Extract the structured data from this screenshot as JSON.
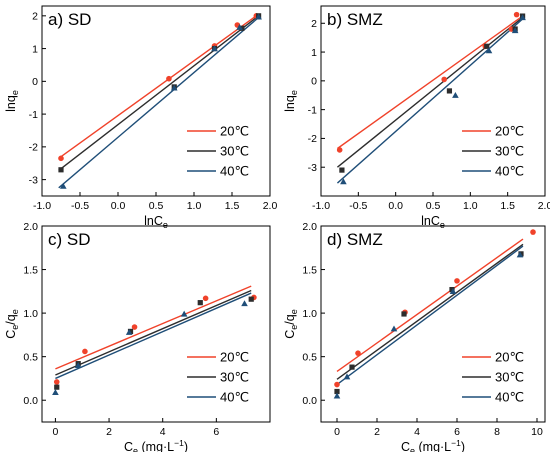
{
  "legend_labels": [
    "20℃",
    "30℃",
    "40℃"
  ],
  "colors": {
    "20℃": "#f0422a",
    "30℃": "#2d2d2d",
    "40℃": "#1f4e78"
  },
  "chart_data": [
    {
      "type": "scatter",
      "panel": "a) SD",
      "xlabel_main": "lnC",
      "xlabel_sub": "e",
      "ylabel_main": "lnq",
      "ylabel_sub": "e",
      "xlim": [
        -1.0,
        2.0
      ],
      "ylim": [
        -3.5,
        2.3
      ],
      "xticks": [
        -1.0,
        -0.5,
        0.0,
        0.5,
        1.0,
        1.5,
        2.0
      ],
      "xtick_labels": [
        "-1.0",
        "-0.5",
        "0.0",
        "0.5",
        "1.0",
        "1.5",
        "2.0"
      ],
      "yticks": [
        -3,
        -2,
        -1,
        0,
        1,
        2
      ],
      "ytick_labels": [
        "-3",
        "-2",
        "-1",
        "0",
        "1",
        "2"
      ],
      "legend_position": "bottom-right",
      "series": [
        {
          "name": "20℃",
          "marker": "circle",
          "x": [
            -0.75,
            0.67,
            1.27,
            1.57,
            1.82
          ],
          "y": [
            -2.35,
            0.08,
            1.08,
            1.72,
            2.0
          ],
          "fit": [
            [
              -0.78,
              -2.35
            ],
            [
              1.85,
              2.05
            ]
          ]
        },
        {
          "name": "30℃",
          "marker": "square",
          "x": [
            -0.75,
            0.74,
            1.27,
            1.63,
            1.85
          ],
          "y": [
            -2.7,
            -0.17,
            1.0,
            1.62,
            2.0
          ],
          "fit": [
            [
              -0.78,
              -2.72
            ],
            [
              1.85,
              2.0
            ]
          ]
        },
        {
          "name": "40℃",
          "marker": "triangle",
          "x": [
            -0.72,
            0.74,
            1.27,
            1.6,
            1.85
          ],
          "y": [
            -3.2,
            -0.2,
            1.0,
            1.65,
            1.97
          ],
          "fit": [
            [
              -0.78,
              -3.25
            ],
            [
              1.85,
              1.95
            ]
          ]
        }
      ]
    },
    {
      "type": "scatter",
      "panel": "b) SMZ",
      "xlabel_main": "lnC",
      "xlabel_sub": "e",
      "ylabel_main": "lnq",
      "ylabel_sub": "e",
      "xlim": [
        -1.0,
        2.0
      ],
      "ylim": [
        -4.0,
        2.6
      ],
      "xticks": [
        -1.0,
        -0.5,
        0.0,
        0.5,
        1.0,
        1.5,
        2.0
      ],
      "xtick_labels": [
        "-1.0",
        "-0.5",
        "0.0",
        "0.5",
        "1.0",
        "1.5",
        "2.0"
      ],
      "yticks": [
        -3,
        -2,
        -1,
        0,
        1,
        2
      ],
      "ytick_labels": [
        "-3",
        "-2",
        "-1",
        "0",
        "1",
        "2"
      ],
      "legend_position": "bottom-right",
      "series": [
        {
          "name": "20℃",
          "marker": "circle",
          "x": [
            -0.75,
            0.65,
            1.2,
            1.55,
            1.62
          ],
          "y": [
            -2.4,
            0.05,
            1.2,
            1.8,
            2.3
          ],
          "fit": [
            [
              -0.78,
              -2.35
            ],
            [
              1.7,
              2.25
            ]
          ]
        },
        {
          "name": "30℃",
          "marker": "square",
          "x": [
            -0.72,
            0.72,
            1.22,
            1.6,
            1.7
          ],
          "y": [
            -3.1,
            -0.35,
            1.2,
            1.8,
            2.25
          ],
          "fit": [
            [
              -0.78,
              -3.0
            ],
            [
              1.7,
              2.2
            ]
          ]
        },
        {
          "name": "40℃",
          "marker": "triangle",
          "x": [
            -0.7,
            0.8,
            1.25,
            1.6,
            1.7
          ],
          "y": [
            -3.5,
            -0.5,
            1.05,
            1.75,
            2.2
          ],
          "fit": [
            [
              -0.78,
              -3.55
            ],
            [
              1.7,
              2.15
            ]
          ]
        }
      ]
    },
    {
      "type": "scatter",
      "panel": "c) SD",
      "xlabel_main": "C",
      "xlabel_sub": "e",
      "xlabel_suffix": " (mg·L",
      "xlabel_sup": "−1",
      "xlabel_end": ")",
      "ylabel_main": "C",
      "ylabel_sub": "e",
      "ylabel_mid": "/q",
      "ylabel_sub2": "e",
      "xlim": [
        -0.5,
        8.0
      ],
      "ylim": [
        -0.25,
        2.0
      ],
      "xticks": [
        0,
        2,
        4,
        6
      ],
      "xtick_labels": [
        "0",
        "2",
        "4",
        "6"
      ],
      "yticks": [
        0.0,
        0.5,
        1.0,
        1.5,
        2.0
      ],
      "ytick_labels": [
        "0.0",
        "0.5",
        "1.0",
        "1.5",
        "2.0"
      ],
      "legend_position": "bottom-right",
      "series": [
        {
          "name": "20℃",
          "marker": "circle",
          "x": [
            0.05,
            1.1,
            2.95,
            5.6,
            7.4
          ],
          "y": [
            0.21,
            0.56,
            0.84,
            1.17,
            1.18
          ],
          "fit": [
            [
              0.0,
              0.36
            ],
            [
              7.3,
              1.31
            ]
          ]
        },
        {
          "name": "30℃",
          "marker": "square",
          "x": [
            0.05,
            0.85,
            2.8,
            5.4,
            7.3
          ],
          "y": [
            0.15,
            0.42,
            0.79,
            1.12,
            1.16
          ],
          "fit": [
            [
              0.0,
              0.29
            ],
            [
              7.3,
              1.26
            ]
          ]
        },
        {
          "name": "40℃",
          "marker": "triangle",
          "x": [
            0.0,
            0.85,
            2.75,
            4.8,
            7.05
          ],
          "y": [
            0.09,
            0.4,
            0.78,
            0.99,
            1.11
          ],
          "fit": [
            [
              0.0,
              0.25
            ],
            [
              7.3,
              1.23
            ]
          ]
        }
      ]
    },
    {
      "type": "scatter",
      "panel": "d) SMZ",
      "xlabel_main": "C",
      "xlabel_sub": "e",
      "xlabel_suffix": " (mg·L",
      "xlabel_sup": "−1",
      "xlabel_end": ")",
      "ylabel_main": "C",
      "ylabel_sub": "e",
      "ylabel_mid": "/q",
      "ylabel_sub2": "e",
      "xlim": [
        -0.8,
        10.4
      ],
      "ylim": [
        -0.25,
        2.0
      ],
      "xticks": [
        0,
        2,
        4,
        6,
        8,
        10
      ],
      "xtick_labels": [
        "0",
        "2",
        "4",
        "6",
        "8",
        "10"
      ],
      "yticks": [
        0.0,
        0.5,
        1.0,
        1.5,
        2.0
      ],
      "ytick_labels": [
        "0.0",
        "0.5",
        "1.0",
        "1.5",
        "2.0"
      ],
      "legend_position": "bottom-right",
      "series": [
        {
          "name": "20℃",
          "marker": "circle",
          "x": [
            0.0,
            1.05,
            3.4,
            6.0,
            9.8
          ],
          "y": [
            0.18,
            0.54,
            1.01,
            1.37,
            1.93
          ],
          "fit": [
            [
              0.0,
              0.33
            ],
            [
              9.3,
              1.85
            ]
          ]
        },
        {
          "name": "30℃",
          "marker": "square",
          "x": [
            0.0,
            0.75,
            3.35,
            5.75,
            9.2
          ],
          "y": [
            0.1,
            0.38,
            0.99,
            1.27,
            1.68
          ],
          "fit": [
            [
              0.0,
              0.24
            ],
            [
              9.3,
              1.79
            ]
          ]
        },
        {
          "name": "40℃",
          "marker": "triangle",
          "x": [
            0.0,
            0.5,
            2.85,
            5.8,
            9.15
          ],
          "y": [
            0.05,
            0.27,
            0.82,
            1.25,
            1.67
          ],
          "fit": [
            [
              0.0,
              0.18
            ],
            [
              9.3,
              1.77
            ]
          ]
        }
      ]
    }
  ]
}
